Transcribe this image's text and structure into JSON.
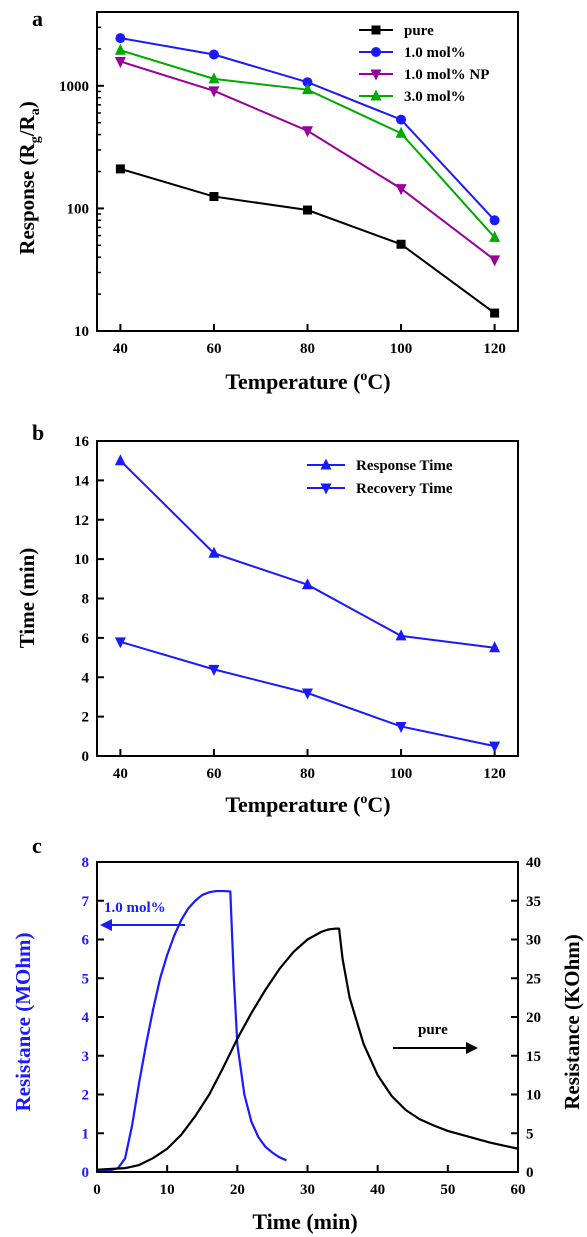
{
  "colors": {
    "pure": "#000000",
    "mol10": "#1a1aff",
    "mol10np": "#990099",
    "mol30": "#00aa00",
    "axis": "#000000"
  },
  "chart_data": [
    {
      "panel": "a",
      "type": "line",
      "xlabel": "Temperature (oC)",
      "ylabel": "Response (Rg/Ra)",
      "yscale": "log",
      "xlim": [
        35,
        125
      ],
      "ylim": [
        10,
        4000
      ],
      "xticks": [
        40,
        60,
        80,
        100,
        120
      ],
      "yticks": [
        10,
        100,
        1000
      ],
      "legend_position": "top-right",
      "x": [
        40,
        60,
        80,
        100,
        120
      ],
      "series": [
        {
          "name": "pure",
          "marker": "square",
          "color": "#000000",
          "values": [
            210,
            125,
            97,
            51,
            14
          ]
        },
        {
          "name": "1.0 mol%",
          "marker": "circle",
          "color": "#1a1aff",
          "values": [
            2450,
            1800,
            1070,
            530,
            80
          ]
        },
        {
          "name": "1.0 mol%  NP",
          "marker": "triangle-down",
          "color": "#990099",
          "values": [
            1580,
            910,
            430,
            145,
            38
          ]
        },
        {
          "name": "3.0 mol%",
          "marker": "triangle-up",
          "color": "#00aa00",
          "values": [
            1950,
            1140,
            930,
            410,
            58
          ]
        }
      ]
    },
    {
      "panel": "b",
      "type": "line",
      "xlabel": "Temperature (oC)",
      "ylabel": "Time (min)",
      "xlim": [
        35,
        125
      ],
      "ylim": [
        0,
        16
      ],
      "xticks": [
        40,
        60,
        80,
        100,
        120
      ],
      "yticks": [
        0,
        2,
        4,
        6,
        8,
        10,
        12,
        14,
        16
      ],
      "legend_position": "top-right",
      "x": [
        40,
        60,
        80,
        100,
        120
      ],
      "series": [
        {
          "name": "Response Time",
          "marker": "triangle-up",
          "color": "#1a1aff",
          "values": [
            15.0,
            10.3,
            8.7,
            6.1,
            5.5
          ]
        },
        {
          "name": "Recovery Time",
          "marker": "triangle-down",
          "color": "#1a1aff",
          "values": [
            5.8,
            4.4,
            3.2,
            1.5,
            0.5
          ]
        }
      ]
    },
    {
      "panel": "c",
      "type": "line",
      "xlabel": "Time (min)",
      "ylabel_left": "Resistance (MOhm)",
      "ylabel_right": "Resistance (KOhm)",
      "xlim": [
        0,
        60
      ],
      "ylim_left": [
        0,
        8
      ],
      "ylim_right": [
        0,
        40
      ],
      "xticks": [
        0,
        10,
        20,
        30,
        40,
        50,
        60
      ],
      "yticks_left": [
        0,
        1,
        2,
        3,
        4,
        5,
        6,
        7,
        8
      ],
      "yticks_right": [
        0,
        5,
        10,
        15,
        20,
        25,
        30,
        35,
        40
      ],
      "annotations": [
        {
          "text": "1.0 mol%",
          "color": "#1a1aff",
          "arrow": "left"
        },
        {
          "text": "pure",
          "color": "#000000",
          "arrow": "right"
        }
      ],
      "series": [
        {
          "name": "1.0 mol%",
          "axis": "left",
          "color": "#1a1aff",
          "x": [
            0,
            2,
            3,
            4,
            5,
            6,
            7,
            8,
            9,
            10,
            11,
            12,
            13,
            14,
            15,
            16,
            17,
            18,
            19,
            19.5,
            20,
            21,
            22,
            23,
            24,
            25,
            26,
            27
          ],
          "y": [
            0.05,
            0.05,
            0.1,
            0.35,
            1.2,
            2.3,
            3.3,
            4.2,
            5.0,
            5.6,
            6.1,
            6.5,
            6.8,
            7.0,
            7.15,
            7.22,
            7.25,
            7.25,
            7.24,
            5.0,
            3.3,
            2.0,
            1.3,
            0.9,
            0.65,
            0.5,
            0.38,
            0.3
          ]
        },
        {
          "name": "pure",
          "axis": "right",
          "color": "#000000",
          "x": [
            0,
            4,
            6,
            8,
            10,
            12,
            14,
            16,
            18,
            20,
            22,
            24,
            26,
            28,
            30,
            32,
            33,
            34,
            34.5,
            35,
            36,
            38,
            40,
            42,
            44,
            46,
            48,
            50,
            52,
            54,
            56,
            58,
            60
          ],
          "y": [
            0.3,
            0.5,
            0.9,
            1.8,
            3.0,
            4.8,
            7.2,
            10.0,
            13.5,
            17.2,
            20.5,
            23.5,
            26.2,
            28.4,
            30.0,
            31.0,
            31.3,
            31.4,
            31.4,
            27.5,
            22.5,
            16.5,
            12.5,
            9.8,
            8.0,
            6.8,
            6.0,
            5.3,
            4.8,
            4.3,
            3.8,
            3.4,
            3.0
          ]
        }
      ]
    }
  ],
  "panel_labels": {
    "a": "a",
    "b": "b",
    "c": "c"
  },
  "panel_a_texts": {
    "ylabel_main": "Response (R",
    "ylabel_sub1": "g",
    "ylabel_mid": "/R",
    "ylabel_sub2": "a",
    "ylabel_end": ")",
    "xlabel_main": "Temperature (",
    "xlabel_sup": "o",
    "xlabel_end": "C)"
  },
  "panel_b_texts": {
    "ylabel": "Time (min)",
    "xlabel_main": "Temperature (",
    "xlabel_sup": "o",
    "xlabel_end": "C)"
  },
  "panel_c_texts": {
    "ylabel_left": "Resistance (MOhm)",
    "ylabel_right": "Resistance (KOhm)",
    "xlabel": "Time (min)"
  }
}
